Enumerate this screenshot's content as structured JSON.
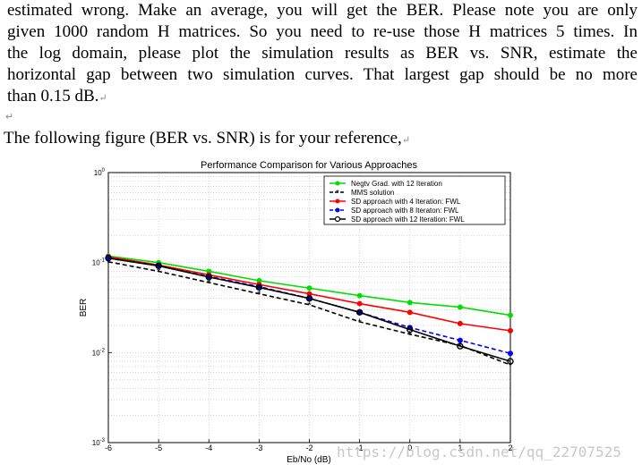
{
  "document": {
    "lines": [
      "estimated wrong. Make an average, you will get the BER.  Please note you are only",
      "given 1000 random H matrices. So you need to re-use those H matrices 5 times. In",
      "the log domain, please plot the simulation results as BER vs. SNR, estimate the",
      "horizontal gap between two simulation curves. That largest gap should be no more",
      "than 0.15 dB."
    ],
    "paragraph_mark": "↵",
    "reference_text": "The following figure (BER vs. SNR) is for your reference,",
    "watermark": "https://blog.csdn.net/qq_22707525"
  },
  "chart_data": {
    "type": "line",
    "title": "Performance Comparison for Various Approaches",
    "xlabel": "Eb/No (dB)",
    "ylabel": "BER",
    "xlim": [
      -6,
      2
    ],
    "ylim": [
      0.001,
      1
    ],
    "yscale": "log",
    "grid": true,
    "legend_position": "top-right",
    "x": [
      -6,
      -5,
      -4,
      -3,
      -2,
      -1,
      0,
      1,
      2
    ],
    "xticks": [
      "-6",
      "-5",
      "-4",
      "-3",
      "-2",
      "-1",
      "0",
      "1",
      "2"
    ],
    "yticks": [
      {
        "base": "10",
        "exp": "0",
        "value": 1
      },
      {
        "base": "10",
        "exp": "-1",
        "value": 0.1
      },
      {
        "base": "10",
        "exp": "-2",
        "value": 0.01
      },
      {
        "base": "10",
        "exp": "-3",
        "value": 0.001
      }
    ],
    "series": [
      {
        "name": "Negtv Grad. with 12 Iteration",
        "color": "#00e000",
        "dash": "solid",
        "marker": "dot",
        "values": [
          0.118,
          0.1,
          0.08,
          0.063,
          0.052,
          0.043,
          0.036,
          0.032,
          0.026
        ]
      },
      {
        "name": "MMS solution",
        "color": "#000000",
        "dash": "dashed",
        "marker": "star",
        "values": [
          0.102,
          0.08,
          0.06,
          0.045,
          0.034,
          0.022,
          0.016,
          0.012,
          0.0073
        ]
      },
      {
        "name": "SD approach with 4 Iteration: FWL",
        "color": "#ff0000",
        "dash": "solid",
        "marker": "dot",
        "values": [
          0.116,
          0.094,
          0.073,
          0.057,
          0.045,
          0.035,
          0.028,
          0.021,
          0.0175
        ]
      },
      {
        "name": "SD approach with 8 Iteraton: FWL",
        "color": "#0000ff",
        "dash": "dashed",
        "marker": "dot",
        "values": [
          0.112,
          0.092,
          0.07,
          0.054,
          0.04,
          0.028,
          0.019,
          0.0137,
          0.0098
        ]
      },
      {
        "name": "SD approach with 12 Iteration: FWL",
        "color": "#000000",
        "dash": "solid",
        "marker": "circle",
        "values": [
          0.112,
          0.092,
          0.069,
          0.053,
          0.04,
          0.028,
          0.018,
          0.0118,
          0.008
        ]
      }
    ]
  }
}
